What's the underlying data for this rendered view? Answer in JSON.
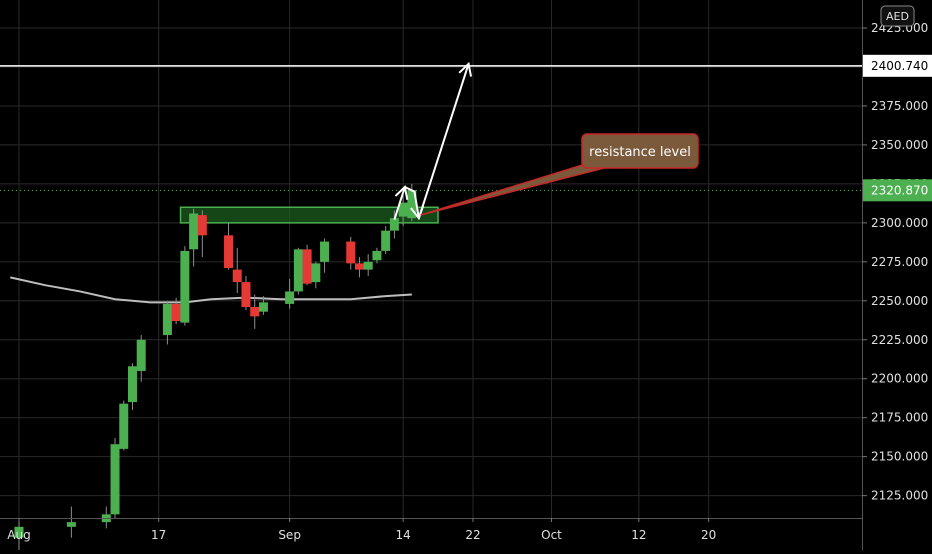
{
  "chart_data": {
    "type": "candlestick",
    "currency": "AED",
    "y_range": [
      2110,
      2435
    ],
    "y_ticks": [
      "2425.000",
      "2400.000",
      "2375.000",
      "2350.000",
      "2325.000",
      "2300.000",
      "2275.000",
      "2250.000",
      "2225.000",
      "2200.000",
      "2175.000",
      "2150.000",
      "2125.000"
    ],
    "x_ticks": [
      {
        "label": "Aug",
        "day": 1
      },
      {
        "label": "17",
        "day": 17
      },
      {
        "label": "Sep",
        "day": 32
      },
      {
        "label": "14",
        "day": 45
      },
      {
        "label": "22",
        "day": 53
      },
      {
        "label": "Oct",
        "day": 62
      },
      {
        "label": "12",
        "day": 72
      },
      {
        "label": "20",
        "day": 80
      }
    ],
    "candles": [
      {
        "day": 1,
        "o": 2098,
        "h": 2110,
        "l": 2090,
        "c": 2105
      },
      {
        "day": 7,
        "o": 2105,
        "h": 2118,
        "l": 2098,
        "c": 2108
      },
      {
        "day": 11,
        "o": 2108,
        "h": 2118,
        "l": 2104,
        "c": 2113
      },
      {
        "day": 12,
        "o": 2113,
        "h": 2162,
        "l": 2110,
        "c": 2158
      },
      {
        "day": 13,
        "o": 2155,
        "h": 2186,
        "l": 2154,
        "c": 2184
      },
      {
        "day": 14,
        "o": 2185,
        "h": 2210,
        "l": 2180,
        "c": 2208
      },
      {
        "day": 15,
        "o": 2205,
        "h": 2228,
        "l": 2198,
        "c": 2225
      },
      {
        "day": 18,
        "o": 2228,
        "h": 2250,
        "l": 2222,
        "c": 2248
      },
      {
        "day": 19,
        "o": 2248,
        "h": 2252,
        "l": 2235,
        "c": 2237
      },
      {
        "day": 20,
        "o": 2236,
        "h": 2285,
        "l": 2234,
        "c": 2282
      },
      {
        "day": 21,
        "o": 2283,
        "h": 2309,
        "l": 2272,
        "c": 2306
      },
      {
        "day": 22,
        "o": 2305,
        "h": 2308,
        "l": 2278,
        "c": 2292
      },
      {
        "day": 25,
        "o": 2292,
        "h": 2300,
        "l": 2270,
        "c": 2271
      },
      {
        "day": 26,
        "o": 2270,
        "h": 2284,
        "l": 2255,
        "c": 2262
      },
      {
        "day": 27,
        "o": 2262,
        "h": 2266,
        "l": 2244,
        "c": 2246
      },
      {
        "day": 28,
        "o": 2246,
        "h": 2254,
        "l": 2232,
        "c": 2240
      },
      {
        "day": 29,
        "o": 2243,
        "h": 2253,
        "l": 2241,
        "c": 2249
      },
      {
        "day": 32,
        "o": 2248,
        "h": 2264,
        "l": 2245,
        "c": 2256
      },
      {
        "day": 33,
        "o": 2256,
        "h": 2284,
        "l": 2254,
        "c": 2283
      },
      {
        "day": 34,
        "o": 2283,
        "h": 2286,
        "l": 2260,
        "c": 2261
      },
      {
        "day": 35,
        "o": 2262,
        "h": 2275,
        "l": 2258,
        "c": 2274
      },
      {
        "day": 36,
        "o": 2275,
        "h": 2290,
        "l": 2268,
        "c": 2288
      },
      {
        "day": 39,
        "o": 2288,
        "h": 2291,
        "l": 2270,
        "c": 2274
      },
      {
        "day": 40,
        "o": 2274,
        "h": 2278,
        "l": 2265,
        "c": 2270
      },
      {
        "day": 41,
        "o": 2270,
        "h": 2280,
        "l": 2266,
        "c": 2275
      },
      {
        "day": 42,
        "o": 2276,
        "h": 2284,
        "l": 2274,
        "c": 2282
      },
      {
        "day": 43,
        "o": 2282,
        "h": 2298,
        "l": 2280,
        "c": 2295
      },
      {
        "day": 44,
        "o": 2295,
        "h": 2308,
        "l": 2290,
        "c": 2303
      },
      {
        "day": 45,
        "o": 2304,
        "h": 2318,
        "l": 2298,
        "c": 2313
      },
      {
        "day": 46,
        "o": 2303,
        "h": 2325,
        "l": 2301,
        "c": 2321
      }
    ],
    "moving_average": [
      {
        "day": 0,
        "v": 2265
      },
      {
        "day": 4,
        "v": 2260
      },
      {
        "day": 8,
        "v": 2256
      },
      {
        "day": 12,
        "v": 2251
      },
      {
        "day": 16,
        "v": 2249
      },
      {
        "day": 20,
        "v": 2249
      },
      {
        "day": 23,
        "v": 2251
      },
      {
        "day": 27,
        "v": 2252
      },
      {
        "day": 31,
        "v": 2251
      },
      {
        "day": 35,
        "v": 2251
      },
      {
        "day": 39,
        "v": 2251
      },
      {
        "day": 43,
        "v": 2253
      },
      {
        "day": 46,
        "v": 2254
      }
    ],
    "resistance_zone": {
      "day_start": 19.5,
      "day_end": 49,
      "low": 2300,
      "high": 2310
    },
    "horizontal_line": {
      "price": 2400.74,
      "label": "2400.740"
    },
    "last_price": {
      "price": 2320.87,
      "label": "2320.870"
    },
    "callout_text": "resistance level",
    "callout_anchor": {
      "day": 47,
      "price": 2305
    },
    "projection_path": [
      {
        "day": 44,
        "price": 2302
      },
      {
        "day": 45.2,
        "price": 2323
      },
      {
        "day": 46.3,
        "price": 2320
      },
      {
        "day": 46.8,
        "price": 2303
      },
      {
        "day": 52.5,
        "price": 2402
      }
    ]
  },
  "colors": {
    "background": "#000000",
    "up": "#4caf50",
    "down": "#e53935",
    "wick": "#8d8d8d",
    "moving_average": "#bdbdbd",
    "zone_fill": "#1b5e20",
    "zone_stroke": "#4caf50",
    "callout_fill": "#7a5a3a",
    "callout_stroke": "#c62828",
    "grid": "#2a2a2a",
    "axis_text": "#e0e0e0"
  }
}
